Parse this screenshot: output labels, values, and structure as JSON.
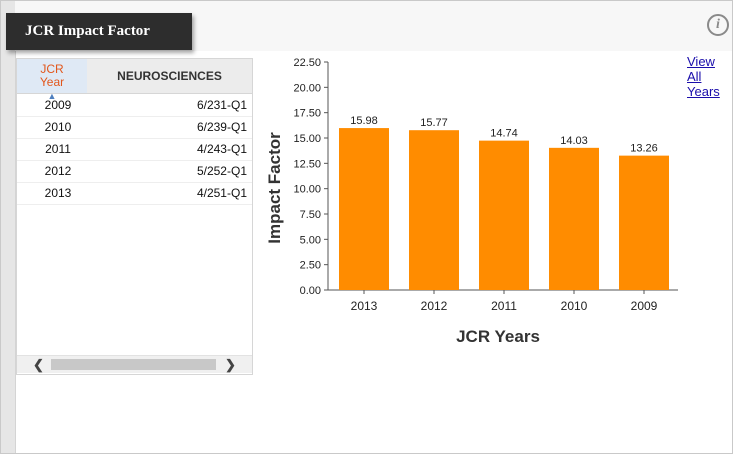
{
  "widget": {
    "title": "JCR Impact Factor",
    "info_icon_glyph": "i",
    "view_all_link": "View All Years"
  },
  "table": {
    "year_header": "JCR Year",
    "category_header": "NEUROSCIENCES",
    "rows": [
      {
        "year": "2009",
        "rank": "6/231-Q1"
      },
      {
        "year": "2010",
        "rank": "6/239-Q1"
      },
      {
        "year": "2011",
        "rank": "4/243-Q1"
      },
      {
        "year": "2012",
        "rank": "5/252-Q1"
      },
      {
        "year": "2013",
        "rank": "4/251-Q1"
      }
    ],
    "scroll_left_glyph": "❮",
    "scroll_right_glyph": "❯"
  },
  "colors": {
    "bar": "#ff8c00",
    "header_accent": "#e2571c",
    "title_tab": "#2d2d2d"
  },
  "chart_data": {
    "type": "bar",
    "categories": [
      "2013",
      "2012",
      "2011",
      "2010",
      "2009"
    ],
    "values": [
      15.98,
      15.77,
      14.74,
      14.03,
      13.26
    ],
    "value_labels": [
      "15.98",
      "15.77",
      "14.74",
      "14.03",
      "13.26"
    ],
    "xlabel": "JCR Years",
    "ylabel": "Impact Factor",
    "ylim": [
      0,
      22.5
    ],
    "yticks": [
      "0.00",
      "2.50",
      "5.00",
      "7.50",
      "10.00",
      "12.50",
      "15.00",
      "17.50",
      "20.00",
      "22.50"
    ],
    "grid": false,
    "legend": "none"
  }
}
